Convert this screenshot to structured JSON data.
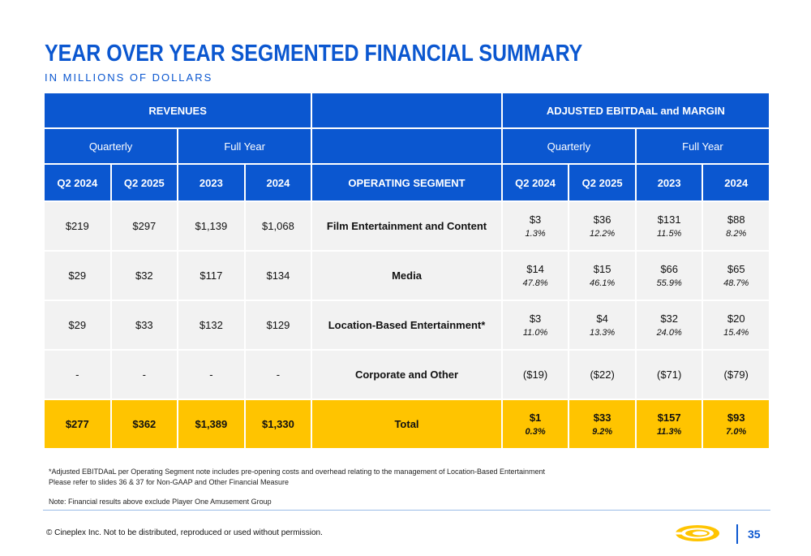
{
  "title": "YEAR OVER YEAR SEGMENTED FINANCIAL SUMMARY",
  "subtitle": "IN MILLIONS OF DOLLARS",
  "headers": {
    "revenues": "REVENUES",
    "ebitda": "ADJUSTED EBITDAaL and MARGIN",
    "quarterly": "Quarterly",
    "full_year": "Full Year",
    "operating_segment": "OPERATING SEGMENT",
    "columns": [
      "Q2 2024",
      "Q2 2025",
      "2023",
      "2024"
    ]
  },
  "rows": [
    {
      "segment": "Film Entertainment and Content",
      "rev": [
        "$219",
        "$297",
        "$1,139",
        "$1,068"
      ],
      "ebitda": [
        "$3",
        "$36",
        "$131",
        "$88"
      ],
      "margin": [
        "1.3%",
        "12.2%",
        "11.5%",
        "8.2%"
      ]
    },
    {
      "segment": "Media",
      "rev": [
        "$29",
        "$32",
        "$117",
        "$134"
      ],
      "ebitda": [
        "$14",
        "$15",
        "$66",
        "$65"
      ],
      "margin": [
        "47.8%",
        "46.1%",
        "55.9%",
        "48.7%"
      ]
    },
    {
      "segment": "Location-Based Entertainment*",
      "rev": [
        "$29",
        "$33",
        "$132",
        "$129"
      ],
      "ebitda": [
        "$3",
        "$4",
        "$32",
        "$20"
      ],
      "margin": [
        "11.0%",
        "13.3%",
        "24.0%",
        "15.4%"
      ]
    },
    {
      "segment": "Corporate and Other",
      "rev": [
        "-",
        "-",
        "-",
        "-"
      ],
      "ebitda": [
        "($19)",
        "($22)",
        "($71)",
        "($79)"
      ],
      "margin": [
        "",
        "",
        "",
        ""
      ]
    }
  ],
  "total": {
    "segment": "Total",
    "rev": [
      "$277",
      "$362",
      "$1,389",
      "$1,330"
    ],
    "ebitda": [
      "$1",
      "$33",
      "$157",
      "$93"
    ],
    "margin": [
      "0.3%",
      "9.2%",
      "11.3%",
      "7.0%"
    ]
  },
  "footnotes": {
    "line1": "*Adjusted EBITDAaL per Operating Segment note includes pre-opening costs and overhead relating to the management of Location-Based Entertainment",
    "line2": "Please refer to slides 36 & 37 for Non-GAAP and Other Financial Measure",
    "note": "Note: Financial results above exclude Player One Amusement Group"
  },
  "copyright": "© Cineplex Inc. Not to be distributed, reproduced or used without permission.",
  "page_number": "35",
  "colors": {
    "accent_blue": "#0b57d0",
    "total_yellow": "#ffc400",
    "row_gray": "#f2f2f2"
  },
  "icons": {
    "logo": "cineplex-logo-icon"
  }
}
